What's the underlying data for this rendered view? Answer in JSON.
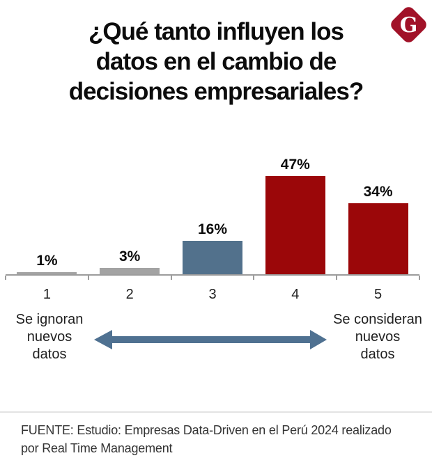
{
  "header": {
    "title_lines": [
      "¿Qué tanto influyen los",
      "datos en el cambio de",
      "decisiones empresariales?"
    ],
    "logo": {
      "letter": "G",
      "background": "#a11228",
      "letter_color": "#ffffff"
    }
  },
  "chart_data": {
    "type": "bar",
    "title": "¿Qué tanto influyen los datos en el cambio de decisiones empresariales?",
    "categories": [
      "1",
      "2",
      "3",
      "4",
      "5"
    ],
    "values": [
      1,
      3,
      16,
      47,
      34
    ],
    "value_labels": [
      "1%",
      "3%",
      "16%",
      "47%",
      "34%"
    ],
    "bar_colors": [
      "#a3a3a3",
      "#a3a3a3",
      "#52718c",
      "#9b0709",
      "#9b0709"
    ],
    "ylim": [
      0,
      50
    ],
    "grid": false,
    "axis_color": "#9c9c9c",
    "scale_note_left": {
      "lines": [
        "Se ignoran",
        "nuevos",
        "datos"
      ]
    },
    "scale_note_right": {
      "lines": [
        "Se consideran",
        "nuevos",
        "datos"
      ]
    },
    "arrow_color": "#4f7191"
  },
  "footer": {
    "divider_color": "#e3e3e3",
    "source_lines": [
      "FUENTE: Estudio: Empresas Data-Driven en el Perú 2024 realizado",
      "por Real Time Management"
    ]
  }
}
